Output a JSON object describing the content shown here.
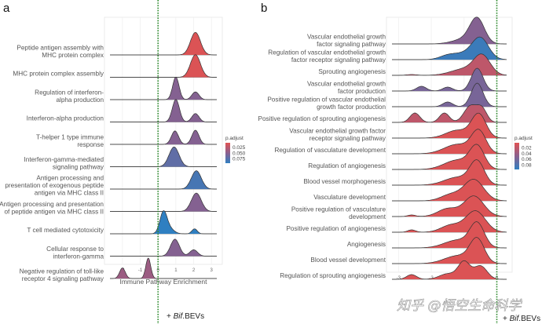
{
  "panel_a_label": "a",
  "panel_b_label": "b",
  "treatment_label_prefix": "+ ",
  "treatment_label_italic": "Bif",
  "treatment_label_suffix": ".BEVs",
  "watermark": "知乎 @悟空生命科学",
  "colors": {
    "low_padj": "#e05252",
    "mid_padj": "#8a5f8e",
    "high_padj": "#2f7fc1",
    "reference_line": "#2e8b2e"
  },
  "chart_data": [
    {
      "type": "ridgeline",
      "panel": "a",
      "title": "",
      "xlabel": "Immune Pathway Enrichment",
      "ylabel": "",
      "xlim": [
        -2.7,
        3.3
      ],
      "xticks": [
        -2,
        -1,
        0,
        1,
        2,
        3
      ],
      "grid": true,
      "reference_line_x": 0,
      "legend": {
        "title": "p.adjust",
        "placement": "right",
        "range": [
          0.01,
          0.085
        ],
        "ticks": [
          "0.025",
          "0.050",
          "0.075"
        ]
      },
      "rows": [
        {
          "label": [
            "Peptide antigen assembly with",
            "MHC protein complex"
          ],
          "p_adjust": 0.012,
          "peaks": [
            {
              "x": 2.1,
              "h": 1.6,
              "w": 0.28
            }
          ]
        },
        {
          "label": [
            "MHC protein complex assembly"
          ],
          "p_adjust": 0.012,
          "peaks": [
            {
              "x": 2.1,
              "h": 1.6,
              "w": 0.28
            }
          ]
        },
        {
          "label": [
            "Regulation of interferon-",
            "alpha production"
          ],
          "p_adjust": 0.05,
          "peaks": [
            {
              "x": 1.0,
              "h": 1.6,
              "w": 0.18
            },
            {
              "x": 2.1,
              "h": 0.55,
              "w": 0.2
            }
          ]
        },
        {
          "label": [
            "Interferon-alpha production"
          ],
          "p_adjust": 0.05,
          "peaks": [
            {
              "x": 1.0,
              "h": 1.6,
              "w": 0.2
            },
            {
              "x": 2.1,
              "h": 0.6,
              "w": 0.2
            }
          ]
        },
        {
          "label": [
            "T-helper 1 type immune",
            "response"
          ],
          "p_adjust": 0.05,
          "peaks": [
            {
              "x": 0.95,
              "h": 0.95,
              "w": 0.2
            },
            {
              "x": 2.1,
              "h": 1.0,
              "w": 0.2
            }
          ]
        },
        {
          "label": [
            "Interferon-gamma-mediated",
            "signaling pathway"
          ],
          "p_adjust": 0.065,
          "peaks": [
            {
              "x": 0.9,
              "h": 1.4,
              "w": 0.28
            }
          ]
        },
        {
          "label": [
            "Antigen processing and",
            "presentation of exogenous peptide",
            "antigen via MHC class II"
          ],
          "p_adjust": 0.075,
          "peaks": [
            {
              "x": 2.15,
              "h": 1.3,
              "w": 0.28
            }
          ]
        },
        {
          "label": [
            "Antigen processing and presentation",
            "of peptide antigen via MHC class II"
          ],
          "p_adjust": 0.05,
          "peaks": [
            {
              "x": 2.15,
              "h": 1.3,
              "w": 0.28
            }
          ]
        },
        {
          "label": [
            "T cell mediated cytotoxicity"
          ],
          "p_adjust": 0.085,
          "peaks": [
            {
              "x": 0.3,
              "h": 1.5,
              "w": 0.2
            },
            {
              "x": 0.65,
              "h": 0.35,
              "w": 0.25
            },
            {
              "x": 2.05,
              "h": 0.35,
              "w": 0.15
            }
          ]
        },
        {
          "label": [
            "Cellular response to",
            "interferon-gamma"
          ],
          "p_adjust": 0.05,
          "peaks": [
            {
              "x": 0.95,
              "h": 1.2,
              "w": 0.25
            },
            {
              "x": 2.0,
              "h": 0.45,
              "w": 0.22
            }
          ]
        },
        {
          "label": [
            "Negative regulation of toll-like",
            "receptor 4 signaling pathway"
          ],
          "p_adjust": 0.04,
          "peaks": [
            {
              "x": -2.0,
              "h": 0.75,
              "w": 0.16
            },
            {
              "x": -0.55,
              "h": 1.45,
              "w": 0.14
            }
          ]
        }
      ]
    },
    {
      "type": "ridgeline",
      "panel": "b",
      "title": "",
      "xlabel": "",
      "ylabel": "",
      "xlim": [
        -3.2,
        0.3
      ],
      "xticks": [
        -3,
        -2,
        -1,
        0
      ],
      "grid": true,
      "reference_line_x": 0,
      "legend": {
        "title": "p.adjust",
        "placement": "right",
        "range": [
          0.01,
          0.085
        ],
        "ticks": [
          "0.02",
          "0.04",
          "0.06",
          "0.08"
        ]
      },
      "rows": [
        {
          "label": [
            "Vascular endothelial growth",
            "factor signaling pathway"
          ],
          "p_adjust": 0.05,
          "peaks": [
            {
              "x": -0.6,
              "h": 1.55,
              "w": 0.22
            },
            {
              "x": -1.0,
              "h": 0.3,
              "w": 0.35
            }
          ]
        },
        {
          "label": [
            "Regulation of vascular endothelial growth",
            "factor receptor signaling pathway"
          ],
          "p_adjust": 0.08,
          "peaks": [
            {
              "x": -0.5,
              "h": 1.35,
              "w": 0.25
            },
            {
              "x": -1.5,
              "h": 0.25,
              "w": 0.25
            },
            {
              "x": -1.0,
              "h": 0.35,
              "w": 0.3
            }
          ]
        },
        {
          "label": [
            "Sprouting angiogenesis"
          ],
          "p_adjust": 0.025,
          "peaks": [
            {
              "x": -0.45,
              "h": 1.2,
              "w": 0.25
            },
            {
              "x": -1.0,
              "h": 0.4,
              "w": 0.4
            },
            {
              "x": -2.6,
              "h": 0.05,
              "w": 0.15
            }
          ]
        },
        {
          "label": [
            "Vascular endothelial growth",
            "factor production"
          ],
          "p_adjust": 0.055,
          "peaks": [
            {
              "x": -0.6,
              "h": 1.45,
              "w": 0.18
            },
            {
              "x": -2.3,
              "h": 0.3,
              "w": 0.15
            },
            {
              "x": -1.5,
              "h": 0.25,
              "w": 0.15
            }
          ]
        },
        {
          "label": [
            "Positive regulation of vascular endothelial",
            "growth factor production"
          ],
          "p_adjust": 0.055,
          "peaks": [
            {
              "x": -0.6,
              "h": 1.5,
              "w": 0.18
            },
            {
              "x": -1.5,
              "h": 0.3,
              "w": 0.15
            }
          ]
        },
        {
          "label": [
            "Positive regulation of sprouting angiogenesis"
          ],
          "p_adjust": 0.025,
          "peaks": [
            {
              "x": -2.5,
              "h": 0.6,
              "w": 0.15
            },
            {
              "x": -1.6,
              "h": 0.6,
              "w": 0.15
            },
            {
              "x": -0.8,
              "h": 1.05,
              "w": 0.2
            },
            {
              "x": -0.45,
              "h": 0.8,
              "w": 0.15
            }
          ]
        },
        {
          "label": [
            "Vascular endothelial growth factor",
            "receptor signaling pathway"
          ],
          "p_adjust": 0.012,
          "peaks": [
            {
              "x": -0.55,
              "h": 1.5,
              "w": 0.22
            },
            {
              "x": -1.2,
              "h": 0.5,
              "w": 0.35
            }
          ]
        },
        {
          "label": [
            "Regulation of vasculature development"
          ],
          "p_adjust": 0.012,
          "peaks": [
            {
              "x": -0.55,
              "h": 1.4,
              "w": 0.22
            },
            {
              "x": -1.2,
              "h": 0.6,
              "w": 0.4
            }
          ]
        },
        {
          "label": [
            "Regulation of angiogenesis"
          ],
          "p_adjust": 0.012,
          "peaks": [
            {
              "x": -0.6,
              "h": 1.4,
              "w": 0.22
            },
            {
              "x": -1.2,
              "h": 0.6,
              "w": 0.4
            }
          ]
        },
        {
          "label": [
            "Blood vessel morphogenesis"
          ],
          "p_adjust": 0.012,
          "peaks": [
            {
              "x": -0.6,
              "h": 1.45,
              "w": 0.22
            },
            {
              "x": -1.2,
              "h": 0.5,
              "w": 0.4
            }
          ]
        },
        {
          "label": [
            "Vasculature development"
          ],
          "p_adjust": 0.012,
          "peaks": [
            {
              "x": -0.7,
              "h": 1.35,
              "w": 0.3
            },
            {
              "x": -1.4,
              "h": 0.4,
              "w": 0.3
            }
          ]
        },
        {
          "label": [
            "Positive regulation of vasculature",
            "development"
          ],
          "p_adjust": 0.012,
          "peaks": [
            {
              "x": -0.7,
              "h": 1.3,
              "w": 0.3
            },
            {
              "x": -1.5,
              "h": 0.5,
              "w": 0.3
            },
            {
              "x": -2.6,
              "h": 0.1,
              "w": 0.12
            }
          ]
        },
        {
          "label": [
            "Positive regulation of angiogenesis"
          ],
          "p_adjust": 0.012,
          "peaks": [
            {
              "x": -0.65,
              "h": 1.35,
              "w": 0.3
            },
            {
              "x": -1.4,
              "h": 0.45,
              "w": 0.3
            },
            {
              "x": -2.6,
              "h": 0.15,
              "w": 0.12
            }
          ]
        },
        {
          "label": [
            "Angiogenesis"
          ],
          "p_adjust": 0.012,
          "peaks": [
            {
              "x": -0.6,
              "h": 1.5,
              "w": 0.22
            },
            {
              "x": -1.2,
              "h": 0.5,
              "w": 0.4
            }
          ]
        },
        {
          "label": [
            "Blood vessel development"
          ],
          "p_adjust": 0.012,
          "peaks": [
            {
              "x": -0.6,
              "h": 1.5,
              "w": 0.22
            },
            {
              "x": -1.2,
              "h": 0.5,
              "w": 0.4
            }
          ]
        },
        {
          "label": [
            "Regulation of sprouting angiogenesis"
          ],
          "p_adjust": 0.012,
          "peaks": [
            {
              "x": -1.0,
              "h": 1.1,
              "w": 0.18
            },
            {
              "x": -0.5,
              "h": 0.85,
              "w": 0.2
            },
            {
              "x": -1.5,
              "h": 0.35,
              "w": 0.25
            },
            {
              "x": -2.6,
              "h": 0.3,
              "w": 0.15
            }
          ]
        }
      ]
    }
  ]
}
